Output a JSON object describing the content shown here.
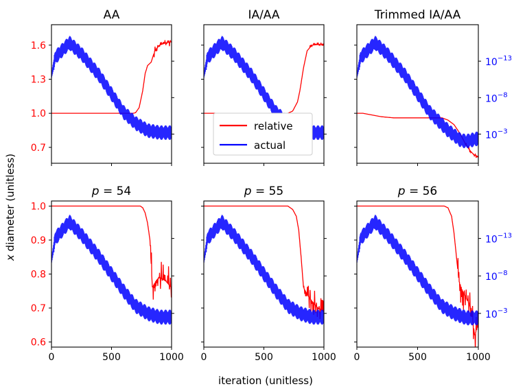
{
  "figure": {
    "ylabel_math": "x",
    "ylabel_rest": " diameter (unitless)",
    "xlabel": "iteration (unitless)"
  },
  "colors": {
    "relative": "#ff0000",
    "actual": "#0000ff",
    "axis": "#000000"
  },
  "legend": {
    "location": "top-right panel 2",
    "entries": [
      "relative",
      "actual"
    ]
  },
  "chart_data": [
    {
      "id": "aa",
      "type": "line",
      "title": "AA",
      "xlim": [
        0,
        1000
      ],
      "xticks": [
        0,
        500,
        1000
      ],
      "show_xticklabels": false,
      "ylim": [
        0.56,
        1.78
      ],
      "yticks": [
        0.7,
        1.0,
        1.3,
        1.6
      ],
      "yticklabels": [
        "0.7",
        "1.0",
        "1.3",
        "1.6"
      ],
      "show_yticklabels": true,
      "log_ylim": [
        -17,
        2
      ],
      "log_yticks": [
        -13,
        -8,
        -3
      ],
      "show_log_ticklabels": false,
      "series": [
        {
          "name": "relative",
          "axis": "left",
          "points": [
            [
              0,
              1.0
            ],
            [
              680,
              1.0
            ],
            [
              700,
              1.005
            ],
            [
              730,
              1.05
            ],
            [
              760,
              1.2
            ],
            [
              780,
              1.35
            ],
            [
              800,
              1.42
            ],
            [
              830,
              1.45
            ],
            [
              860,
              1.55
            ],
            [
              900,
              1.6
            ],
            [
              950,
              1.62
            ],
            [
              1000,
              1.63
            ]
          ],
          "noise": 0.04,
          "noise_from": 850
        },
        {
          "name": "actual",
          "axis": "log",
          "points": [
            [
              0,
              -5
            ],
            [
              30,
              -2.5
            ],
            [
              150,
              -0.5
            ],
            [
              250,
              -2
            ],
            [
              400,
              -5
            ],
            [
              600,
              -10
            ],
            [
              700,
              -11.5
            ],
            [
              800,
              -12.5
            ],
            [
              900,
              -12.8
            ],
            [
              1000,
              -12.8
            ]
          ],
          "osc": 0.8
        }
      ]
    },
    {
      "id": "iaaa",
      "type": "line",
      "title": "IA/AA",
      "xlim": [
        0,
        1000
      ],
      "xticks": [
        0,
        500,
        1000
      ],
      "show_xticklabels": false,
      "ylim": [
        0.56,
        1.78
      ],
      "yticks": [
        0.7,
        1.0,
        1.3,
        1.6
      ],
      "yticklabels": [
        "0.7",
        "1.0",
        "1.3",
        "1.6"
      ],
      "show_yticklabels": false,
      "log_ylim": [
        -17,
        2
      ],
      "log_yticks": [
        -13,
        -8,
        -3
      ],
      "show_log_ticklabels": false,
      "series": [
        {
          "name": "relative",
          "axis": "left",
          "points": [
            [
              0,
              1.0
            ],
            [
              700,
              1.0
            ],
            [
              740,
              1.02
            ],
            [
              780,
              1.1
            ],
            [
              800,
              1.2
            ],
            [
              830,
              1.4
            ],
            [
              860,
              1.55
            ],
            [
              900,
              1.6
            ],
            [
              1000,
              1.61
            ]
          ],
          "noise": 0.02,
          "noise_from": 880
        },
        {
          "name": "actual",
          "axis": "log",
          "points": [
            [
              0,
              -5
            ],
            [
              30,
              -2.5
            ],
            [
              150,
              -0.5
            ],
            [
              250,
              -2
            ],
            [
              400,
              -5
            ],
            [
              600,
              -10
            ],
            [
              700,
              -11.5
            ],
            [
              800,
              -12.5
            ],
            [
              900,
              -12.8
            ],
            [
              1000,
              -12.8
            ]
          ],
          "osc": 0.8
        }
      ]
    },
    {
      "id": "trimmed",
      "type": "line",
      "title": "Trimmed IA/AA",
      "xlim": [
        0,
        1000
      ],
      "xticks": [
        0,
        500,
        1000
      ],
      "show_xticklabels": false,
      "ylim": [
        0.56,
        1.78
      ],
      "yticks": [
        0.7,
        1.0,
        1.3,
        1.6
      ],
      "yticklabels": [
        "0.7",
        "1.0",
        "1.3",
        "1.6"
      ],
      "show_yticklabels": false,
      "log_ylim": [
        -17,
        2
      ],
      "log_yticks": [
        -13,
        -8,
        -3
      ],
      "log_yticklabels": [
        "10",
        "10",
        "10"
      ],
      "log_yticklabel_exps": [
        "−3",
        "−8",
        "−13"
      ],
      "show_log_ticklabels": true,
      "series": [
        {
          "name": "relative",
          "axis": "left",
          "points": [
            [
              0,
              1.0
            ],
            [
              50,
              1.0
            ],
            [
              100,
              0.99
            ],
            [
              200,
              0.97
            ],
            [
              300,
              0.96
            ],
            [
              700,
              0.96
            ],
            [
              750,
              0.94
            ],
            [
              800,
              0.9
            ],
            [
              850,
              0.82
            ],
            [
              900,
              0.72
            ],
            [
              940,
              0.66
            ],
            [
              970,
              0.63
            ],
            [
              1000,
              0.62
            ]
          ],
          "noise": 0.02,
          "noise_from": 880
        },
        {
          "name": "actual",
          "axis": "log",
          "points": [
            [
              0,
              -5
            ],
            [
              30,
              -2.5
            ],
            [
              150,
              -0.5
            ],
            [
              250,
              -2
            ],
            [
              400,
              -5
            ],
            [
              600,
              -10
            ],
            [
              750,
              -12.5
            ],
            [
              850,
              -13.8
            ],
            [
              900,
              -14
            ],
            [
              1000,
              -13.6
            ]
          ],
          "osc": 0.8
        }
      ]
    },
    {
      "id": "p54",
      "type": "line",
      "title_var": "p",
      "title_val": " = 54",
      "xlim": [
        0,
        1000
      ],
      "xticks": [
        0,
        500,
        1000
      ],
      "xticklabels": [
        "0",
        "500",
        "1000"
      ],
      "show_xticklabels": true,
      "ylim": [
        0.585,
        1.015
      ],
      "yticks": [
        0.6,
        0.7,
        0.8,
        0.9,
        1.0
      ],
      "yticklabels": [
        "0.6",
        "0.7",
        "0.8",
        "0.9",
        "1.0"
      ],
      "show_yticklabels": true,
      "log_ylim": [
        -17.5,
        2
      ],
      "log_yticks": [
        -13,
        -8,
        -3
      ],
      "show_log_ticklabels": false,
      "series": [
        {
          "name": "relative",
          "axis": "left",
          "points": [
            [
              0,
              1.0
            ],
            [
              740,
              1.0
            ],
            [
              760,
              0.995
            ],
            [
              780,
              0.98
            ],
            [
              800,
              0.95
            ],
            [
              820,
              0.9
            ],
            [
              840,
              0.76
            ],
            [
              870,
              0.78
            ],
            [
              900,
              0.79
            ],
            [
              950,
              0.78
            ],
            [
              1000,
              0.76
            ]
          ],
          "noise": 0.06,
          "noise_from": 820
        },
        {
          "name": "actual",
          "axis": "log",
          "points": [
            [
              0,
              -6
            ],
            [
              30,
              -3
            ],
            [
              150,
              -0.8
            ],
            [
              250,
              -2.5
            ],
            [
              400,
              -5.5
            ],
            [
              600,
              -10
            ],
            [
              700,
              -12
            ],
            [
              800,
              -13
            ],
            [
              900,
              -13.5
            ],
            [
              1000,
              -13.5
            ]
          ],
          "osc": 0.8
        }
      ]
    },
    {
      "id": "p55",
      "type": "line",
      "title_var": "p",
      "title_val": " = 55",
      "xlim": [
        0,
        1000
      ],
      "xticks": [
        0,
        500,
        1000
      ],
      "xticklabels": [
        "0",
        "500",
        "1000"
      ],
      "show_xticklabels": true,
      "ylim": [
        0.585,
        1.015
      ],
      "yticks": [
        0.6,
        0.7,
        0.8,
        0.9,
        1.0
      ],
      "yticklabels": [
        "0.6",
        "0.7",
        "0.8",
        "0.9",
        "1.0"
      ],
      "show_yticklabels": false,
      "log_ylim": [
        -17.5,
        2
      ],
      "log_yticks": [
        -13,
        -8,
        -3
      ],
      "show_log_ticklabels": false,
      "series": [
        {
          "name": "relative",
          "axis": "left",
          "points": [
            [
              0,
              1.0
            ],
            [
              700,
              1.0
            ],
            [
              740,
              0.99
            ],
            [
              770,
              0.97
            ],
            [
              790,
              0.93
            ],
            [
              810,
              0.85
            ],
            [
              830,
              0.76
            ],
            [
              860,
              0.74
            ],
            [
              900,
              0.72
            ],
            [
              950,
              0.7
            ],
            [
              1000,
              0.69
            ]
          ],
          "noise": 0.04,
          "noise_from": 830
        },
        {
          "name": "actual",
          "axis": "log",
          "points": [
            [
              0,
              -6
            ],
            [
              30,
              -3
            ],
            [
              150,
              -0.8
            ],
            [
              250,
              -2.5
            ],
            [
              400,
              -5.5
            ],
            [
              600,
              -10
            ],
            [
              700,
              -12
            ],
            [
              800,
              -13
            ],
            [
              900,
              -13.5
            ],
            [
              1000,
              -13.5
            ]
          ],
          "osc": 0.8
        }
      ]
    },
    {
      "id": "p56",
      "type": "line",
      "title_var": "p",
      "title_val": " = 56",
      "xlim": [
        0,
        1000
      ],
      "xticks": [
        0,
        500,
        1000
      ],
      "xticklabels": [
        "0",
        "500",
        "1000"
      ],
      "show_xticklabels": true,
      "ylim": [
        0.585,
        1.015
      ],
      "yticks": [
        0.6,
        0.7,
        0.8,
        0.9,
        1.0
      ],
      "yticklabels": [
        "0.6",
        "0.7",
        "0.8",
        "0.9",
        "1.0"
      ],
      "show_yticklabels": false,
      "log_ylim": [
        -17.5,
        2
      ],
      "log_yticks": [
        -13,
        -8,
        -3
      ],
      "log_yticklabels": [
        "10",
        "10",
        "10"
      ],
      "log_yticklabel_exps": [
        "−3",
        "−8",
        "−13"
      ],
      "show_log_ticklabels": true,
      "series": [
        {
          "name": "relative",
          "axis": "left",
          "points": [
            [
              0,
              1.0
            ],
            [
              720,
              1.0
            ],
            [
              750,
              0.995
            ],
            [
              780,
              0.97
            ],
            [
              800,
              0.92
            ],
            [
              820,
              0.85
            ],
            [
              840,
              0.78
            ],
            [
              870,
              0.75
            ],
            [
              900,
              0.73
            ],
            [
              940,
              0.7
            ],
            [
              970,
              0.62
            ],
            [
              1000,
              0.65
            ]
          ],
          "noise": 0.05,
          "noise_from": 830
        },
        {
          "name": "actual",
          "axis": "log",
          "points": [
            [
              0,
              -6
            ],
            [
              30,
              -3
            ],
            [
              150,
              -0.8
            ],
            [
              250,
              -2.5
            ],
            [
              400,
              -5.5
            ],
            [
              600,
              -10
            ],
            [
              700,
              -12
            ],
            [
              800,
              -13
            ],
            [
              900,
              -13.6
            ],
            [
              1000,
              -13.6
            ]
          ],
          "osc": 0.8
        }
      ]
    }
  ]
}
